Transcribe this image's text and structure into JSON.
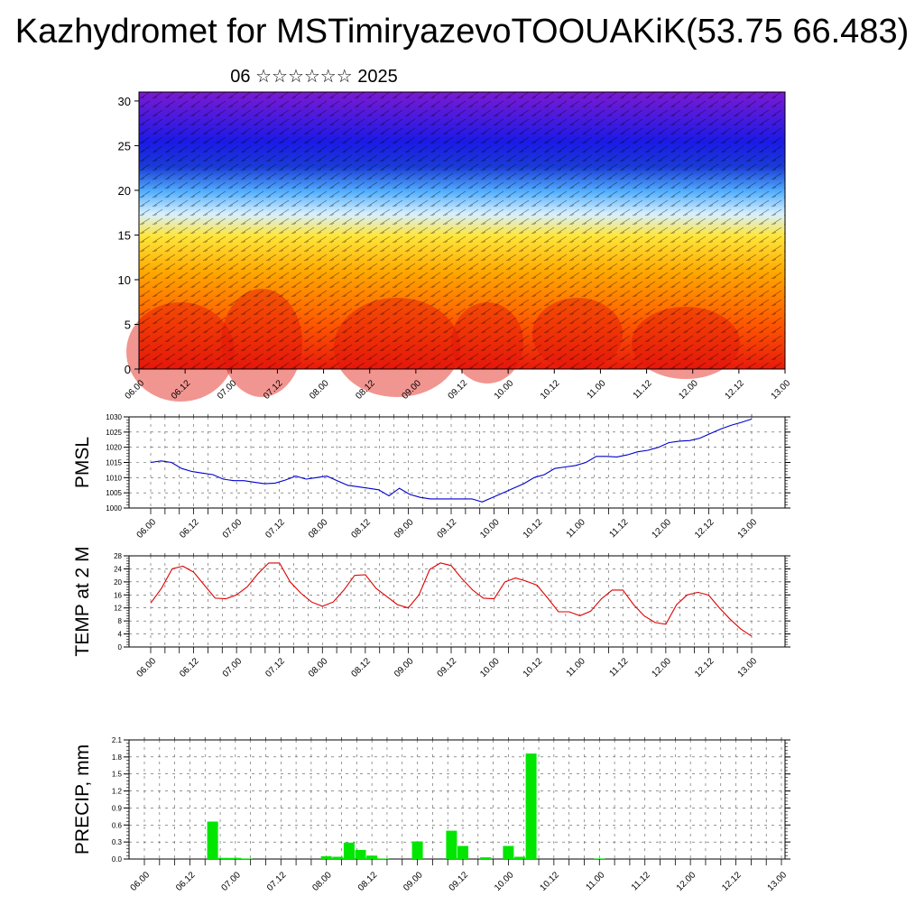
{
  "title": "Kazhydromet for MSTimiryazevoTOOUAKiK(53.75 66.483)",
  "subtitle": "06 ☆☆☆☆☆☆ 2025",
  "chart_data": [
    {
      "type": "heatmap",
      "description_of_fill": "cross-section colour field",
      "x_ticks": [
        "06.00",
        "06.12",
        "07.00",
        "07.12",
        "08.00",
        "08.12",
        "09.00",
        "09.12",
        "10.00",
        "10.12",
        "11.00",
        "11.12",
        "12.00",
        "12.12",
        "13.00"
      ],
      "y_ticks": [
        "0",
        "5",
        "10",
        "15",
        "20",
        "25",
        "30"
      ],
      "ylim": [
        0,
        31
      ],
      "colors": [
        "#e81a0c",
        "#ff5a00",
        "#ffa800",
        "#ffe63a",
        "#9ad2ff",
        "#2f7bff",
        "#1a1ae6",
        "#7a1ad2"
      ]
    },
    {
      "type": "line",
      "ylabel": "PMSL",
      "ylim": [
        1000,
        1030
      ],
      "y_ticks": [
        "1000",
        "1005",
        "1010",
        "1015",
        "1020",
        "1025",
        "1030"
      ],
      "x_ticks": [
        "06.00",
        "06.12",
        "07.00",
        "07.12",
        "08.00",
        "08.12",
        "09.00",
        "09.12",
        "10.00",
        "10.12",
        "11.00",
        "11.12",
        "12.00",
        "12.12",
        "13.00"
      ],
      "color": "#0000cc",
      "values": [
        1015,
        1015.5,
        1015,
        1013,
        1012,
        1011.5,
        1011,
        1009.5,
        1009,
        1009,
        1008.5,
        1008,
        1008.2,
        1009.2,
        1010.5,
        1009.5,
        1010,
        1010.5,
        1009,
        1007.5,
        1007,
        1006.5,
        1006,
        1004,
        1006.5,
        1004.5,
        1003.5,
        1003,
        1003,
        1003,
        1003,
        1003,
        1002,
        1003.5,
        1005,
        1006.5,
        1008,
        1010,
        1011,
        1013,
        1013.5,
        1014,
        1015,
        1017,
        1017,
        1016.8,
        1017.5,
        1018.5,
        1019,
        1020,
        1021.5,
        1022,
        1022.2,
        1023,
        1024.5,
        1026,
        1027.2,
        1028.2,
        1029.3
      ]
    },
    {
      "type": "line",
      "ylabel": "TEMP at 2 M",
      "ylim": [
        0,
        28
      ],
      "y_ticks": [
        "0",
        "4",
        "8",
        "12",
        "16",
        "20",
        "24",
        "28"
      ],
      "x_ticks": [
        "06.00",
        "06.12",
        "07.00",
        "07.12",
        "08.00",
        "08.12",
        "09.00",
        "09.12",
        "10.00",
        "10.12",
        "11.00",
        "11.12",
        "12.00",
        "12.12",
        "13.00"
      ],
      "color": "#dd0000",
      "values": [
        13.5,
        18,
        24,
        24.8,
        23,
        19,
        15,
        14.8,
        16,
        18.5,
        22.5,
        25.8,
        25.8,
        20,
        16.5,
        13.8,
        12.5,
        13.8,
        17.5,
        22,
        22.2,
        18,
        15.5,
        13,
        12,
        16,
        23.8,
        25.8,
        25,
        21,
        17.5,
        15,
        14.8,
        20,
        21.2,
        20.2,
        19,
        15,
        10.8,
        10.8,
        9.6,
        11,
        14.8,
        17.5,
        17.5,
        13,
        9.5,
        7.5,
        7,
        13,
        16,
        16.8,
        15.9,
        12,
        8.5,
        5.5,
        3.3
      ]
    },
    {
      "type": "bar",
      "ylabel": "PRECIP, mm",
      "ylim": [
        0,
        2.1
      ],
      "y_ticks": [
        "0.0",
        "0.3",
        "0.6",
        "0.9",
        "1.2",
        "1.5",
        "1.8",
        "2.1"
      ],
      "x_ticks": [
        "06.00",
        "06.12",
        "07.00",
        "07.12",
        "08.00",
        "08.12",
        "09.00",
        "09.12",
        "10.00",
        "10.12",
        "11.00",
        "11.12",
        "12.00",
        "12.12",
        "13.00"
      ],
      "color": "#00e600",
      "x": [
        "06.18",
        "06.21",
        "06.24",
        "07.03",
        "08.00",
        "08.03",
        "08.06",
        "08.09",
        "08.12",
        "08.15",
        "09.00",
        "09.09",
        "09.12",
        "09.18",
        "10.00",
        "10.03",
        "10.06",
        "11.00"
      ],
      "values": [
        0.66,
        0.02,
        0.02,
        0.01,
        0.05,
        0.04,
        0.29,
        0.16,
        0.06,
        0.01,
        0.31,
        0.5,
        0.23,
        0.03,
        0.23,
        0.04,
        1.86,
        0.01
      ]
    }
  ]
}
